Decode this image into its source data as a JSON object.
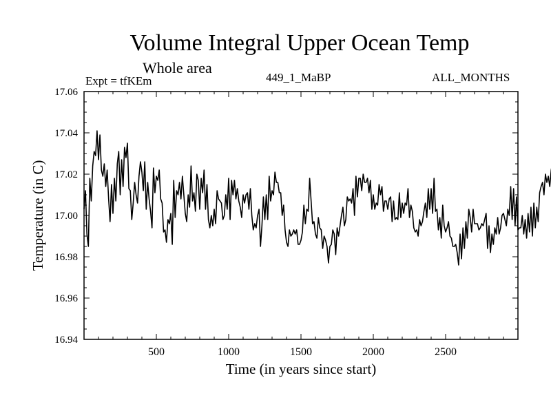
{
  "header": {
    "title": "Volume Integral Upper Ocean Temp",
    "subtitle": "Whole area",
    "experiment": "Expt = tfKEm",
    "run_id": "449_1_MaBP",
    "months": "ALL_MONTHS"
  },
  "chart_data": {
    "type": "line",
    "title": "Volume Integral Upper Ocean Temp",
    "subtitle": "Whole area",
    "xlabel": "Time (in years since start)",
    "ylabel": "Temperature (in C)",
    "xlim": [
      0,
      3000
    ],
    "ylim": [
      16.94,
      17.06
    ],
    "x_ticks": [
      500,
      1000,
      1500,
      2000,
      2500
    ],
    "x_tick_labels": [
      "500",
      "1000",
      "1500",
      "2000",
      "2500"
    ],
    "y_ticks": [
      16.94,
      16.96,
      16.98,
      17.0,
      17.02,
      17.04,
      17.06
    ],
    "y_tick_labels": [
      "16.94",
      "16.96",
      "16.98",
      "17.00",
      "17.02",
      "17.04",
      "17.06"
    ],
    "grid": false,
    "legend": "none",
    "line_color": "#000000",
    "x_step": 10,
    "values": [
      17.003,
      17.012,
      16.991,
      16.985,
      17.018,
      17.007,
      17.024,
      17.031,
      17.029,
      17.041,
      17.027,
      17.039,
      17.022,
      17.019,
      17.025,
      17.014,
      17.022,
      17.008,
      16.997,
      17.015,
      17.001,
      17.018,
      17.007,
      17.025,
      17.031,
      17.01,
      17.027,
      17.014,
      17.033,
      17.028,
      17.035,
      17.013,
      17.012,
      16.998,
      17.006,
      17.016,
      17.01,
      17.006,
      17.019,
      17.026,
      17.021,
      17.012,
      17.026,
      17.003,
      17.016,
      17.008,
      17.002,
      16.994,
      17.023,
      17.011,
      17.019,
      17.017,
      17.022,
      17.008,
      17.006,
      16.992,
      16.993,
      16.987,
      16.998,
      16.996,
      17.001,
      16.986,
      17.017,
      16.999,
      17.012,
      17.01,
      17.016,
      17.008,
      17.019,
      17.01,
      17.001,
      16.997,
      17.01,
      17.004,
      17.024,
      17.007,
      17.011,
      17.002,
      17.02,
      17.017,
      17.003,
      17.018,
      17.011,
      17.022,
      17.003,
      17.015,
      16.998,
      16.994,
      17.0,
      16.995,
      17.003,
      16.996,
      17.012,
      17.008,
      17.007,
      17.006,
      16.998,
      17.0,
      17.01,
      17.003,
      17.018,
      16.998,
      17.017,
      17.01,
      17.017,
      17.008,
      17.013,
      17.007,
      17.004,
      16.999,
      17.01,
      17.006,
      17.01,
      17.011,
      17.003,
      17.013,
      17.0,
      16.993,
      16.996,
      16.994,
      17.0,
      17.003,
      16.985,
      16.995,
      17.009,
      16.998,
      17.01,
      16.998,
      17.019,
      17.007,
      17.012,
      17.01,
      17.021,
      17.016,
      17.016,
      17.011,
      17.011,
      17.0,
      17.005,
      16.993,
      16.987,
      16.985,
      16.993,
      16.99,
      16.991,
      16.993,
      16.991,
      16.993,
      16.986,
      16.986,
      16.988,
      16.992,
      17.005,
      16.996,
      17.003,
      17.002,
      17.018,
      17.007,
      16.996,
      16.997,
      16.991,
      16.989,
      16.999,
      16.994,
      16.993,
      16.984,
      16.99,
      16.988,
      16.985,
      16.977,
      16.985,
      16.986,
      16.993,
      16.991,
      16.981,
      16.994,
      16.99,
      16.995,
      17.0,
      17.004,
      16.995,
      16.998,
      17.009,
      17.007,
      17.008,
      17.006,
      17.013,
      17.0,
      17.019,
      17.009,
      17.018,
      17.018,
      17.012,
      17.02,
      17.016,
      17.016,
      17.018,
      17.011,
      17.017,
      17.003,
      17.01,
      17.003,
      17.006,
      17.005,
      17.015,
      17.01,
      17.014,
      17.002,
      17.007,
      17.007,
      17.003,
      17.008,
      17.009,
      16.997,
      17.007,
      16.998,
      16.999,
      16.998,
      17.011,
      16.999,
      17.006,
      17.001,
      17.006,
      17.005,
      17.013,
      16.999,
      17.005,
      17.002,
      16.994,
      16.992,
      16.993,
      16.99,
      16.998,
      16.995,
      16.997,
      17.002,
      17.006,
      16.999,
      17.013,
      17.003,
      17.013,
      17.001,
      17.018,
      17.002,
      17.003,
      16.993,
      16.999,
      16.989,
      17.005,
      16.995,
      16.992,
      16.994,
      16.997,
      16.99,
      16.989,
      16.985,
      16.985,
      16.986,
      16.982,
      16.976,
      16.991,
      16.979,
      16.994,
      16.984,
      16.997,
      16.989,
      17.003,
      16.999,
      16.992,
      17.003,
      16.996,
      16.996,
      16.996,
      16.993,
      16.994,
      16.996,
      16.995,
      16.998,
      17.001,
      16.984,
      16.995,
      16.982,
      16.991,
      16.986,
      16.994,
      16.991,
      16.999,
      16.991,
      16.994,
      17.0,
      17.001,
      16.998,
      16.995,
      17.003,
      17.0,
      17.014,
      16.998,
      17.013,
      16.995,
      17.009,
      16.993,
      16.994,
      16.994,
      17.0,
      16.991,
      16.998,
      16.989,
      17.001,
      16.992,
      17.004,
      16.99,
      17.006,
      16.994,
      17.004,
      16.997,
      17.011,
      17.014,
      17.016,
      17.01,
      17.02,
      17.016,
      17.019,
      17.014,
      17.022,
      17.026,
      17.014,
      17.004,
      17.018,
      17.003,
      17.014,
      17.002,
      17.011,
      16.999,
      17.012,
      17.009,
      17.011,
      17.02,
      17.009,
      17.021,
      17.017,
      17.009,
      17.016,
      17.005,
      17.016,
      17.002,
      17.008,
      17.005,
      17.016,
      17.016,
      17.024,
      17.014,
      17.013,
      17.014,
      17.015,
      17.005,
      17.011,
      17.002,
      17.012,
      17.005,
      17.015,
      17.006,
      17.013,
      17.009,
      17.012,
      17.007,
      17.009,
      17.004,
      17.008,
      17.003,
      17.011,
      17.01,
      17.014,
      17.013,
      17.01,
      17.004,
      17.009,
      16.997,
      17.007,
      17.003,
      17.007,
      17.008,
      16.998,
      17.009,
      16.998,
      17.003,
      16.996,
      17.001,
      16.994,
      16.997,
      16.989,
      16.995,
      16.986,
      16.985,
      16.98,
      16.986,
      16.985,
      16.992,
      16.987,
      16.978,
      16.983,
      16.969,
      16.976,
      16.967,
      16.974,
      16.961,
      16.968,
      16.966,
      16.979,
      16.985,
      16.985,
      16.989,
      16.981,
      16.991,
      16.994,
      16.997,
      16.989,
      16.99,
      16.984,
      16.99,
      16.988,
      16.997,
      16.993,
      17.002,
      16.998,
      17.002,
      16.999,
      17.001,
      17.002,
      16.994,
      17.004,
      16.998,
      17.001,
      17.007,
      17.002,
      17.009,
      17.005,
      17.008,
      17.003,
      17.006,
      17.011,
      17.011,
      17.008,
      17.008,
      17.012,
      17.006,
      17.003,
      17.0,
      17.005,
      16.998,
      16.995,
      16.998,
      17.002,
      17.006,
      16.999,
      17.005,
      16.998,
      16.992,
      16.992,
      16.985,
      16.981,
      16.985,
      16.98,
      16.989,
      16.988,
      16.984,
      16.988,
      16.991,
      16.998,
      16.994,
      16.996,
      16.991,
      17.0,
      16.998,
      17.003,
      16.998,
      17.002,
      16.997,
      17.0,
      16.991,
      16.995,
      16.993,
      17.003,
      16.998,
      17.001,
      16.996,
      17.007,
      16.993,
      16.997,
      17.001,
      17.004,
      17.012,
      17.003,
      17.006,
      17.003,
      17.012,
      17.004,
      17.008,
      16.993,
      17.003,
      16.999,
      17.012,
      17.009,
      17.007,
      17.005,
      17.002,
      17.008,
      16.996,
      17.003,
      17.002,
      17.001,
      16.993,
      17.005,
      16.993,
      16.995,
      16.999,
      16.995,
      16.996,
      16.99,
      16.991,
      16.99,
      16.997,
      16.992,
      16.99,
      16.993,
      16.988,
      16.994,
      16.99,
      16.999,
      16.999,
      17.004,
      16.997,
      17.001,
      16.994,
      17.004,
      16.992,
      17.005,
      16.994,
      16.997,
      16.995,
      17.0,
      16.987,
      16.994,
      16.992,
      16.984,
      16.992,
      16.983,
      16.991,
      16.991,
      16.998,
      16.988,
      16.994,
      16.99,
      17.001,
      16.996,
      16.995,
      16.986,
      16.995,
      16.986,
      16.985,
      16.988,
      16.992,
      16.987,
      16.993,
      17.001,
      16.995,
      17.004,
      16.999,
      17.0,
      16.998,
      16.997,
      16.987,
      16.995,
      16.989,
      16.986,
      16.982,
      16.987,
      16.991,
      16.991,
      16.989,
      16.997,
      16.992,
      16.996,
      16.994,
      16.984,
      16.988,
      16.984,
      16.985,
      16.975,
      16.988,
      16.981,
      16.992,
      16.986,
      16.992,
      16.983,
      16.986,
      16.99,
      16.985,
      16.983,
      16.977,
      16.982,
      16.97,
      16.973,
      16.977,
      16.993,
      16.987,
      16.989,
      16.989,
      16.997,
      16.997,
      16.997,
      16.995,
      16.995,
      16.991,
      16.993,
      16.983,
      16.988,
      16.98,
      16.988,
      16.983,
      16.995,
      16.992,
      17.004,
      16.994,
      17.002,
      16.996,
      17.004,
      16.998,
      17.005,
      16.999,
      17.008,
      17.002,
      17.011,
      17.001,
      17.007,
      17.003,
      17.014,
      17.008,
      17.017,
      17.009,
      17.017,
      17.008,
      17.013,
      17.015,
      17.012,
      17.012,
      17.006,
      17.012,
      17.0,
      17.005,
      16.998,
      17.004,
      16.993,
      16.992,
      16.997,
      17.005,
      16.999,
      17.007,
      17.004,
      17.013,
      17.0,
      17.016,
      17.01,
      17.011,
      17.003,
      17.01,
      17.004,
      17.012,
      17.0,
      17.013,
      17.006,
      17.01,
      17.003,
      17.001,
      17.002,
      16.997,
      17.003,
      16.998,
      16.998,
      16.995,
      17.0,
      16.994,
      17.0,
      16.993,
      17.004,
      16.998,
      16.999,
      16.991,
      16.997,
      16.99,
      16.996,
      16.998,
      17.003,
      16.994,
      17.002,
      16.997,
      17.0,
      16.991,
      16.996,
      16.989,
      16.998,
      16.99,
      16.992,
      16.99,
      17.003,
      16.996,
      16.998,
      16.998,
      17.0,
      16.991,
      17.001,
      17.002,
      17.008,
      17.002,
      17.01,
      17.001,
      17.014,
      17.007,
      17.014,
      17.009,
      17.018,
      17.011,
      17.017,
      17.007,
      17.014,
      17.004,
      17.015,
      17.007,
      17.013,
      17.002,
      17.003,
      16.994,
      17.004,
      16.995,
      17.002,
      16.993,
      17.004,
      17.002,
      17.007,
      17.0,
      16.994,
      16.996,
      16.993,
      16.997,
      16.99,
      17.002,
      16.999,
      17.003,
      16.998,
      17.003,
      16.998,
      17.001,
      16.996,
      17.001,
      17.002,
      17.003,
      17.003,
      17.01,
      17.007,
      17.01,
      17.002,
      17.016,
      17.009,
      17.014,
      17.009,
      17.008,
      17.004,
      17.011,
      17.004,
      17.012,
      17.004,
      17.017,
      17.011,
      17.015,
      17.015,
      17.018,
      17.021,
      17.008,
      17.012,
      17.008,
      17.012,
      17.016,
      17.02,
      17.011,
      17.019,
      17.014,
      17.021,
      17.011,
      17.015,
      17.007,
      17.014,
      17.007,
      17.005,
      17.004,
      17.003,
      16.994,
      16.994,
      16.988,
      16.994,
      16.987,
      16.99,
      16.987,
      16.983,
      16.989,
      16.982,
      16.994,
      16.986,
      16.991,
      16.988,
      16.992,
      16.987,
      16.99,
      16.982,
      16.989,
      16.981,
      16.98,
      16.98,
      16.984,
      16.973,
      16.975,
      16.969,
      16.979,
      16.984,
      16.989,
      16.983,
      16.993,
      16.985,
      16.991,
      16.985,
      16.996,
      16.986,
      16.99,
      16.983,
      16.99,
      16.986,
      16.994,
      16.993,
      16.992,
      16.99,
      16.984,
      16.991,
      16.983,
      16.989,
      16.996,
      16.99,
      16.998,
      16.993,
      17.006,
      16.996,
      17.011,
      17.001,
      17.005,
      17.001,
      17.011,
      17.006,
      17.008,
      17.006,
      17.011,
      17.003,
      17.006,
      16.997,
      17.003,
      16.992,
      17.001,
      16.998,
      17.002,
      16.992,
      16.99,
      16.98,
      16.982,
      16.977,
      16.971,
      16.976,
      16.968,
      16.977,
      16.975,
      16.989,
      16.984,
      16.995,
      16.989,
      17.0,
      16.991,
      16.998,
      16.992,
      16.994,
      16.993,
      16.994,
      16.988,
      16.994,
      16.986,
      16.993,
      16.988,
      16.991,
      16.988,
      16.99,
      16.992,
      17.0,
      16.991,
      16.998,
      16.993,
      16.995,
      16.996,
      16.986,
      16.988,
      16.982,
      16.992,
      16.985,
      16.99,
      16.981,
      16.983,
      16.979,
      16.983,
      16.978,
      16.971,
      16.979,
      16.977,
      16.985,
      16.99,
      16.987,
      16.993,
      16.987,
      16.988,
      16.983,
      16.977,
      16.973,
      16.966,
      16.968,
      16.974,
      16.979,
      16.985,
      16.98,
      16.99,
      16.988,
      16.998,
      16.993,
      16.991,
      16.991,
      16.986,
      16.981,
      16.985,
      16.988,
      16.98,
      16.979,
      16.983,
      16.977,
      16.982,
      16.98,
      16.986,
      16.981,
      16.987,
      16.991,
      16.999,
      16.994,
      17.005,
      16.998,
      16.991,
      16.988,
      16.988,
      16.982,
      16.985,
      16.99,
      16.98,
      16.976,
      16.977,
      16.975,
      16.965,
      16.973,
      16.974,
      16.975,
      16.976,
      16.976,
      16.978,
      16.978,
      16.982,
      16.979,
      16.98,
      16.984,
      16.984,
      16.985,
      16.981,
      16.986,
      16.981,
      16.988,
      16.983,
      16.978,
      16.984,
      16.98,
      16.985,
      16.987,
      16.992,
      16.985,
      16.989,
      16.989,
      16.987,
      16.993,
      16.983,
      16.983,
      16.977,
      16.976,
      16.979,
      16.972,
      16.983,
      16.975,
      16.976,
      16.97,
      16.969,
      16.961,
      16.962,
      16.961,
      16.969,
      16.968,
      16.97,
      16.969,
      16.974,
      16.973
    ],
    "hover_note": ""
  }
}
